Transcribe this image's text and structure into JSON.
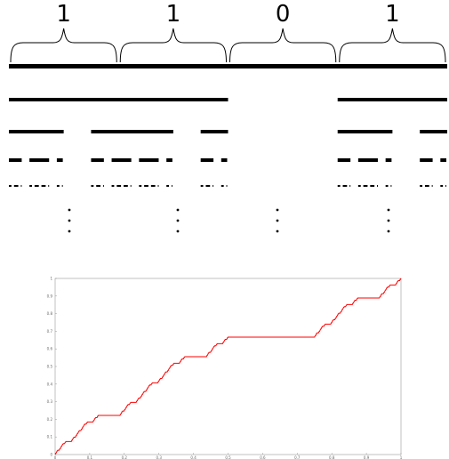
{
  "digits": [
    "1",
    "1",
    "0",
    "1"
  ],
  "dot_glyph": "•",
  "colors": {
    "ink": "#000000",
    "curve": "#ff0000",
    "axis": "#999999"
  },
  "chart_data": {
    "type": "line",
    "title": "",
    "xlabel": "",
    "ylabel": "",
    "xlim": [
      0,
      1
    ],
    "ylim": [
      0,
      1
    ],
    "x_ticks": [
      "0",
      "0.1",
      "0.2",
      "0.3",
      "0.4",
      "0.5",
      "0.6",
      "0.7",
      "0.8",
      "0.9",
      "1"
    ],
    "y_ticks": [
      "0",
      "0.1",
      "0.2",
      "0.3",
      "0.4",
      "0.5",
      "0.6",
      "0.7",
      "0.8",
      "0.9",
      "1"
    ],
    "grid": false,
    "series": [
      {
        "function": "weighted devil's staircase",
        "interval_weights": [
          0.333333,
          0.333333,
          0.0,
          0.333333
        ],
        "range": [
          0,
          1
        ],
        "color": "#ff0000"
      }
    ]
  }
}
